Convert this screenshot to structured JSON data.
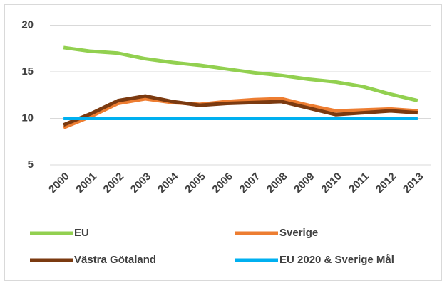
{
  "chart_data": {
    "type": "line",
    "categories": [
      "2000",
      "2001",
      "2002",
      "2003",
      "2004",
      "2005",
      "2006",
      "2007",
      "2008",
      "2009",
      "2010",
      "2011",
      "2012",
      "2013"
    ],
    "series": [
      {
        "name": "EU",
        "color": "#92d050",
        "values": [
          17.6,
          17.2,
          17.0,
          16.4,
          16.0,
          15.7,
          15.3,
          14.9,
          14.6,
          14.2,
          13.9,
          13.4,
          12.6,
          11.9
        ]
      },
      {
        "name": "Sverige",
        "color": "#ed7d31",
        "values": [
          9.0,
          10.2,
          11.6,
          12.1,
          11.7,
          11.5,
          11.8,
          12.0,
          12.1,
          11.4,
          10.8,
          10.9,
          11.0,
          10.8
        ]
      },
      {
        "name": "Västra Götaland",
        "color": "#7b3a10",
        "values": [
          9.3,
          10.5,
          11.9,
          12.4,
          11.8,
          11.4,
          11.6,
          11.7,
          11.8,
          11.1,
          10.4,
          10.6,
          10.8,
          10.6
        ]
      },
      {
        "name": "EU 2020 & Sverige Mål",
        "color": "#00b0f0",
        "values": [
          10,
          10,
          10,
          10,
          10,
          10,
          10,
          10,
          10,
          10,
          10,
          10,
          10,
          10
        ]
      }
    ],
    "ylim": [
      5,
      20
    ],
    "yticks": [
      5,
      10,
      15,
      20
    ],
    "grid": true
  }
}
